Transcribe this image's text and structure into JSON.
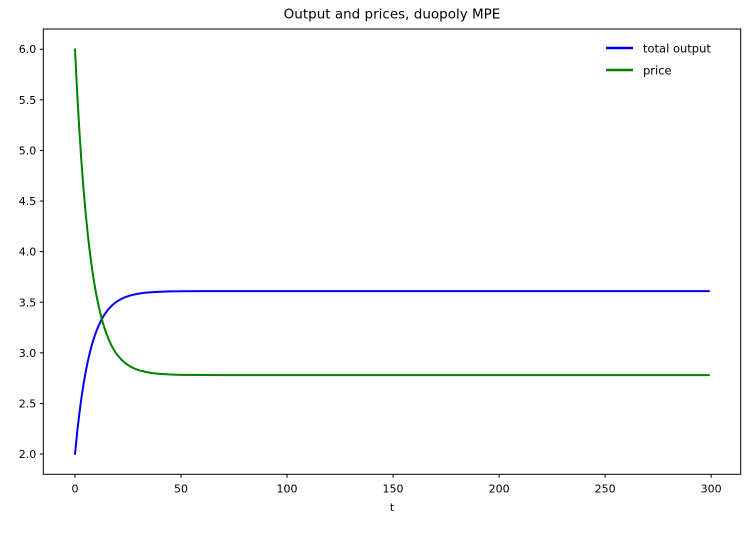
{
  "figure": {
    "background": "#ffffff",
    "text_color": "#000000",
    "axes_edge_color": "#000000"
  },
  "chart_data": {
    "type": "line",
    "title": "Output and prices, duopoly MPE",
    "xlabel": "t",
    "ylabel": "",
    "grid": false,
    "xlim": [
      -14.95,
      313.95
    ],
    "ylim": [
      1.8,
      6.2
    ],
    "x_ticks": {
      "values": [
        0,
        50,
        100,
        150,
        200,
        250,
        300
      ],
      "labels": [
        "0",
        "50",
        "100",
        "150",
        "200",
        "250",
        "300"
      ]
    },
    "y_ticks": {
      "values": [
        2.0,
        2.5,
        3.0,
        3.5,
        4.0,
        4.5,
        5.0,
        5.5,
        6.0
      ],
      "labels": [
        "2.0",
        "2.5",
        "3.0",
        "3.5",
        "4.0",
        "4.5",
        "5.0",
        "5.5",
        "6.0"
      ]
    },
    "legend": {
      "position": "upper right",
      "frame": false
    },
    "x": [
      0,
      1,
      2,
      3,
      4,
      5,
      6,
      7,
      8,
      9,
      10,
      11,
      12,
      13,
      14,
      15,
      16,
      17,
      18,
      19,
      20,
      22,
      24,
      26,
      28,
      30,
      33,
      36,
      40,
      45,
      50,
      60,
      70,
      80,
      100,
      125,
      150,
      175,
      200,
      225,
      250,
      275,
      299
    ],
    "series": [
      {
        "name": "total output",
        "color": "#0000ff",
        "line_width": 2,
        "start_value": 2.0,
        "steady_state": 3.61,
        "values": [
          2.0,
          2.209,
          2.391,
          2.55,
          2.688,
          2.807,
          2.912,
          3.003,
          3.082,
          3.15,
          3.21,
          3.262,
          3.307,
          3.347,
          3.381,
          3.411,
          3.437,
          3.459,
          3.479,
          3.496,
          3.511,
          3.535,
          3.553,
          3.567,
          3.577,
          3.585,
          3.594,
          3.599,
          3.604,
          3.607,
          3.609,
          3.61,
          3.61,
          3.61,
          3.61,
          3.61,
          3.61,
          3.61,
          3.61,
          3.61,
          3.61,
          3.61,
          3.61
        ]
      },
      {
        "name": "price",
        "color": "#008000",
        "line_width": 2,
        "start_value": 6.0,
        "steady_state": 2.78,
        "values": [
          6.0,
          5.581,
          5.217,
          4.9,
          4.625,
          4.385,
          4.176,
          3.995,
          3.837,
          3.699,
          3.58,
          3.476,
          3.386,
          3.307,
          3.238,
          3.179,
          3.127,
          3.082,
          3.043,
          3.008,
          2.979,
          2.93,
          2.894,
          2.866,
          2.845,
          2.829,
          2.813,
          2.801,
          2.792,
          2.786,
          2.783,
          2.781,
          2.78,
          2.78,
          2.78,
          2.78,
          2.78,
          2.78,
          2.78,
          2.78,
          2.78,
          2.78,
          2.78
        ]
      }
    ]
  }
}
